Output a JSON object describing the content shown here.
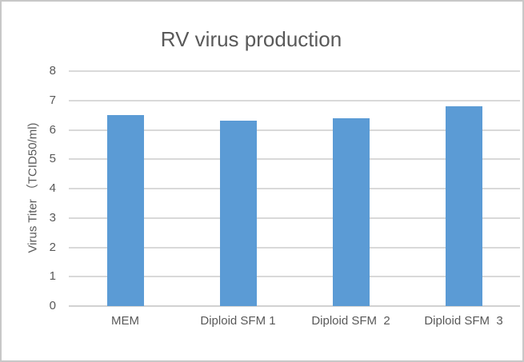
{
  "chart_data": {
    "type": "bar",
    "title": "RV virus production",
    "categories": [
      "MEM",
      "Diploid SFM 1",
      "Diploid SFM  2",
      "Diploid SFM  3"
    ],
    "values": [
      6.5,
      6.3,
      6.4,
      6.8
    ],
    "xlabel": "",
    "ylabel": "Virus Titer （TCID50/ml)",
    "ylim": [
      0,
      8
    ],
    "yticks": [
      0,
      1,
      2,
      3,
      4,
      5,
      6,
      7,
      8
    ],
    "grid": "horizontal",
    "legend_position": "none",
    "bar_color": "#5b9bd5",
    "gridline_color": "#d9d9d9",
    "axis_line_color": "#d2d2d2",
    "text_color": "#595959",
    "background_color": "#ffffff",
    "frame_border_color": "#c8c8c8"
  }
}
